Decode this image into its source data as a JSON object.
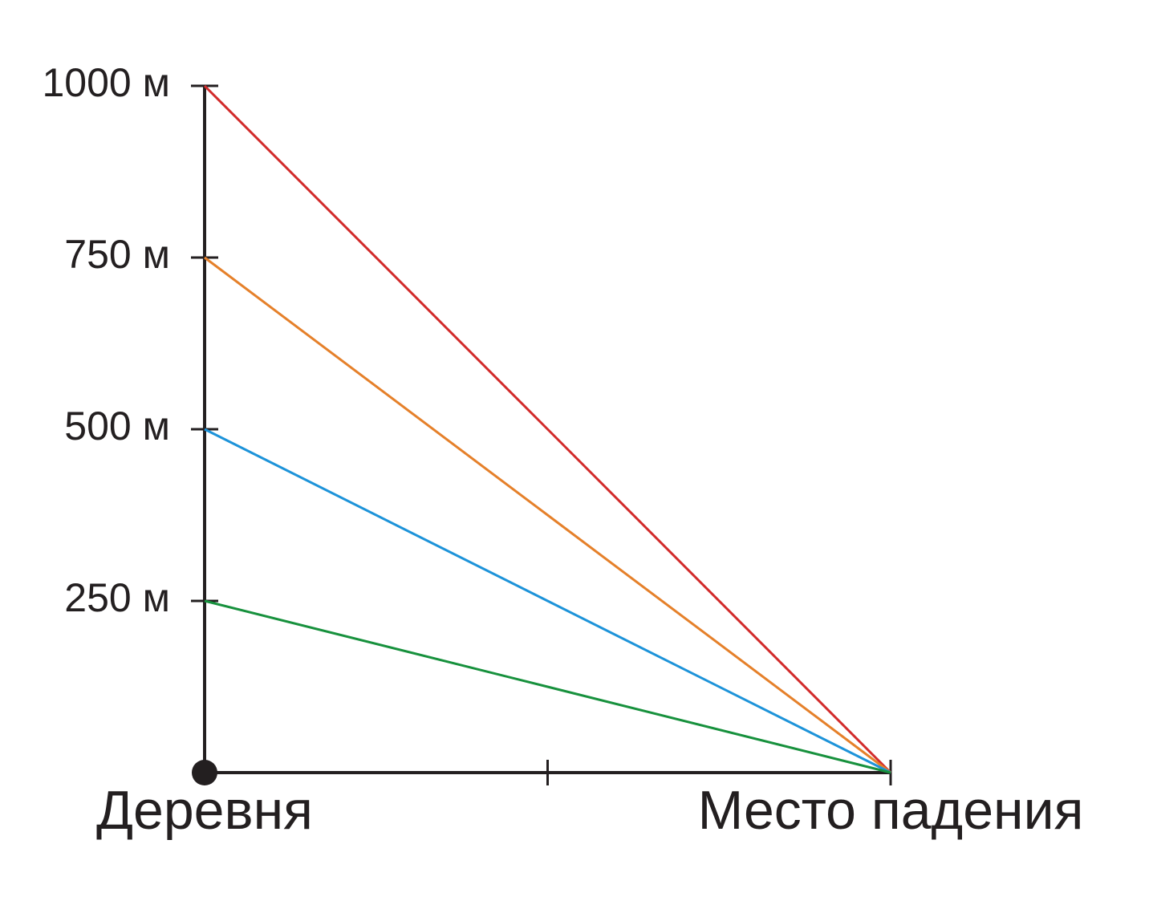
{
  "chart_data": {
    "type": "line",
    "categories": [
      "Деревня",
      null,
      "Место падения"
    ],
    "series": [
      {
        "color": "#d22b2b",
        "values": [
          1000,
          500,
          0
        ]
      },
      {
        "color": "#e5802a",
        "values": [
          750,
          375,
          0
        ]
      },
      {
        "color": "#1d93d9",
        "values": [
          500,
          250,
          0
        ]
      },
      {
        "color": "#17913d",
        "values": [
          250,
          125,
          0
        ]
      }
    ],
    "ylim": [
      0,
      1000
    ],
    "yticks": [
      {
        "value": 250,
        "label": "250 м"
      },
      {
        "value": 500,
        "label": "500 м"
      },
      {
        "value": 750,
        "label": "750 м"
      },
      {
        "value": 1000,
        "label": "1000 м"
      }
    ],
    "grid": false
  }
}
